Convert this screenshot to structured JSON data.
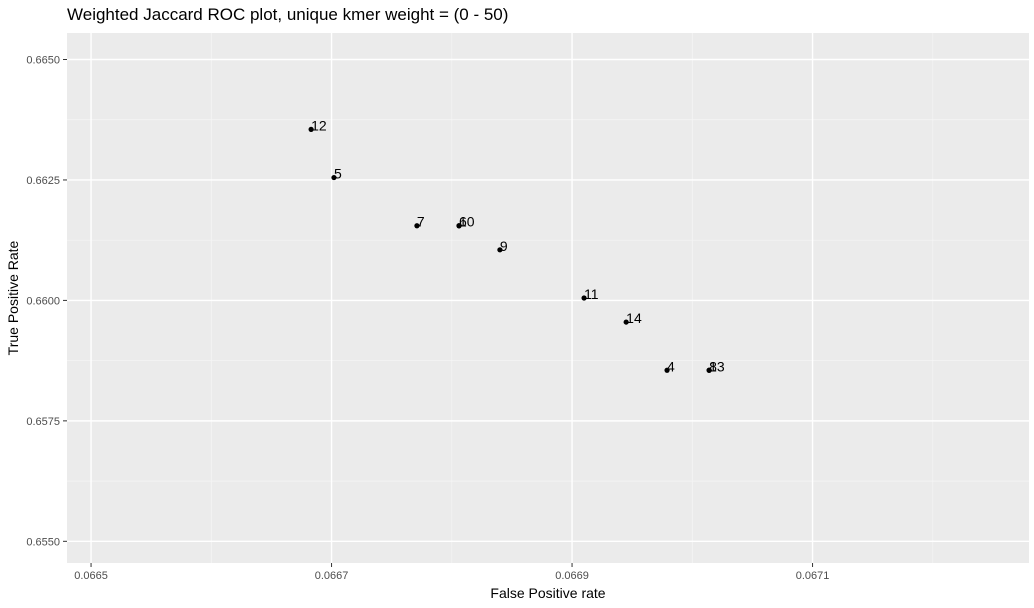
{
  "chart_data": {
    "type": "scatter",
    "title": "Weighted Jaccard ROC plot, unique kmer weight = (0 - 50)",
    "xlabel": "False Positive rate",
    "ylabel": "True Positive Rate",
    "xlim": [
      0.06648,
      0.06728
    ],
    "ylim": [
      0.65455,
      0.66555
    ],
    "x_ticks": [
      0.0665,
      0.0667,
      0.0669,
      0.0671
    ],
    "x_tick_labels": [
      "0.0665",
      "0.0667",
      "0.0669",
      "0.0671"
    ],
    "y_ticks": [
      0.655,
      0.6575,
      0.66,
      0.6625,
      0.665
    ],
    "y_tick_labels": [
      "0.6550",
      "0.6575",
      "0.6600",
      "0.6625",
      "0.6650"
    ],
    "grid": true,
    "points": [
      {
        "label": "12",
        "x": 0.066683,
        "y": 0.66355
      },
      {
        "label": "5",
        "x": 0.066702,
        "y": 0.66255
      },
      {
        "label": "7",
        "x": 0.066771,
        "y": 0.66155
      },
      {
        "label": "6",
        "x": 0.066806,
        "y": 0.66155
      },
      {
        "label": "10",
        "x": 0.066806,
        "y": 0.66155
      },
      {
        "label": "9",
        "x": 0.06684,
        "y": 0.66105
      },
      {
        "label": "11",
        "x": 0.06691,
        "y": 0.66005
      },
      {
        "label": "14",
        "x": 0.066945,
        "y": 0.65955
      },
      {
        "label": "4",
        "x": 0.066979,
        "y": 0.65855
      },
      {
        "label": "8",
        "x": 0.067014,
        "y": 0.65855
      },
      {
        "label": "13",
        "x": 0.067014,
        "y": 0.65855
      }
    ]
  }
}
